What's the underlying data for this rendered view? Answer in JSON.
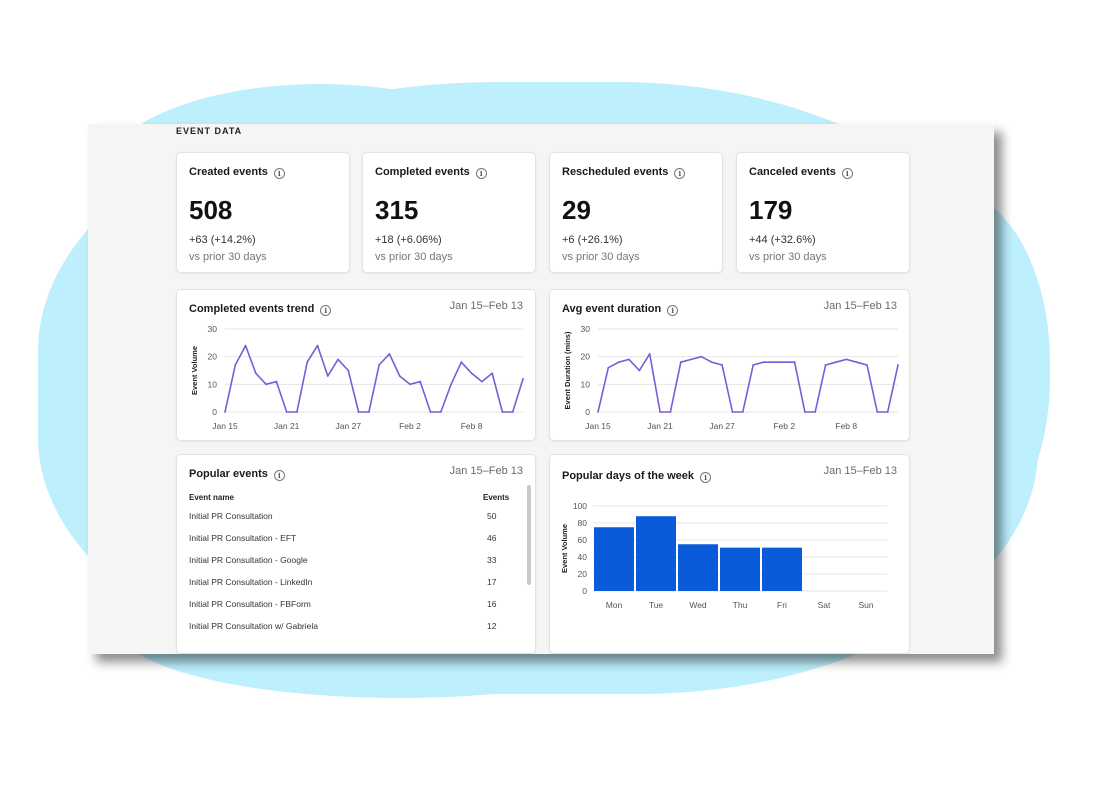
{
  "section": {
    "title": "EVENT DATA"
  },
  "metrics": [
    {
      "label": "Created events",
      "value": "508",
      "delta": "+63 (+14.2%)",
      "sub": "vs prior 30 days"
    },
    {
      "label": "Completed events",
      "value": "315",
      "delta": "+18 (+6.06%)",
      "sub": "vs prior 30 days"
    },
    {
      "label": "Rescheduled events",
      "value": "29",
      "delta": "+6 (+26.1%)",
      "sub": "vs prior 30 days"
    },
    {
      "label": "Canceled events",
      "value": "179",
      "delta": "+44 (+32.6%)",
      "sub": "vs prior 30 days"
    }
  ],
  "icons": {
    "info": "info-icon"
  },
  "colors": {
    "line": "#7b5cd6",
    "bar": "#0a5bd9",
    "background_blob": "#bdeffc"
  },
  "trend_card": {
    "title": "Completed events trend",
    "range": "Jan 15–Feb 13"
  },
  "duration_card": {
    "title": "Avg event duration",
    "range": "Jan 15–Feb 13"
  },
  "popular_events": {
    "title": "Popular events",
    "range": "Jan 15–Feb 13",
    "columns": {
      "name": "Event name",
      "count": "Events"
    },
    "rows": [
      {
        "name": "Initial PR Consultation",
        "count": "50"
      },
      {
        "name": "Initial PR Consultation - EFT",
        "count": "46"
      },
      {
        "name": "Initial PR Consultation - Google",
        "count": "33"
      },
      {
        "name": "Initial PR Consultation - LinkedIn",
        "count": "17"
      },
      {
        "name": "Initial PR Consultation - FBForm",
        "count": "16"
      },
      {
        "name": "Initial PR Consultation w/ Gabriela",
        "count": "12"
      }
    ]
  },
  "days_card": {
    "title": "Popular days of the week",
    "range": "Jan 15–Feb 13"
  },
  "chart_data": [
    {
      "type": "line",
      "ylabel": "Event Volume",
      "ylim": [
        0,
        30
      ],
      "yticks": [
        "30",
        "20",
        "10",
        "0"
      ],
      "xticks": [
        "Jan 15",
        "Jan 21",
        "Jan 27",
        "Feb 2",
        "Feb 8"
      ],
      "values": [
        0,
        17,
        24,
        14,
        10,
        11,
        0,
        0,
        18,
        24,
        13,
        19,
        15,
        0,
        0,
        17,
        21,
        13,
        10,
        11,
        0,
        0,
        10,
        18,
        14,
        11,
        14,
        0,
        0,
        12
      ]
    },
    {
      "type": "line",
      "ylabel": "Event Duration (mins)",
      "ylim": [
        0,
        30
      ],
      "yticks": [
        "30",
        "20",
        "10",
        "0"
      ],
      "xticks": [
        "Jan 15",
        "Jan 21",
        "Jan 27",
        "Feb 2",
        "Feb 8"
      ],
      "values": [
        0,
        16,
        18,
        19,
        15,
        21,
        0,
        0,
        18,
        19,
        20,
        18,
        17,
        0,
        0,
        17,
        18,
        18,
        18,
        18,
        0,
        0,
        17,
        18,
        19,
        18,
        17,
        0,
        0,
        17
      ]
    },
    {
      "type": "bar",
      "ylabel": "Event Volume",
      "ylim": [
        0,
        100
      ],
      "yticks": [
        "100",
        "80",
        "60",
        "40",
        "20",
        "0"
      ],
      "categories": [
        "Mon",
        "Tue",
        "Wed",
        "Thu",
        "Fri",
        "Sat",
        "Sun"
      ],
      "values": [
        75,
        88,
        55,
        51,
        51,
        0,
        0
      ]
    }
  ]
}
